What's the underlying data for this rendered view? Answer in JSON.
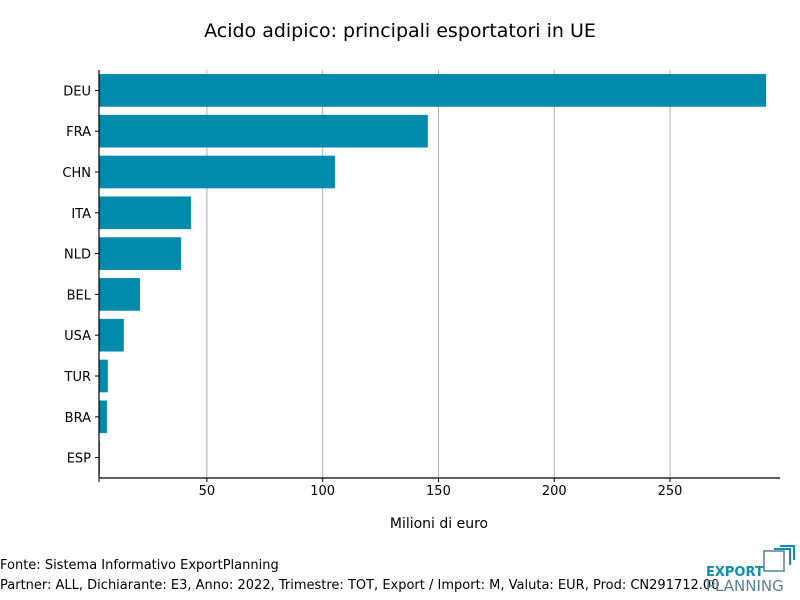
{
  "chart_data": {
    "type": "bar",
    "orientation": "horizontal",
    "title": "Acido adipico: principali esportatori in UE",
    "xlabel": "Milioni di euro",
    "ylabel": "",
    "categories": [
      "DEU",
      "FRA",
      "CHN",
      "ITA",
      "NLD",
      "BEL",
      "USA",
      "TUR",
      "BRA",
      "ESP"
    ],
    "values": [
      291.5,
      145.4,
      105.3,
      43.1,
      38.8,
      21.1,
      14.1,
      7.2,
      6.8,
      3.8
    ],
    "xticks": [
      50,
      100,
      150,
      200,
      250
    ],
    "xlim": [
      3.4,
      297.5
    ],
    "grid": "vertical",
    "bar_color": "#008aab",
    "grid_color": "#b0b0b0"
  },
  "footer": {
    "source": "Fonte: Sistema Informativo ExportPlanning",
    "details": "Partner: ALL, Dichiarante: E3, Anno: 2022, Trimestre: TOT, Export / Import: M, Valuta: EUR, Prod: CN291712.00"
  },
  "logo": {
    "line1": "EXPORT",
    "line2": "PLANNING",
    "color1": "#0a8fb0",
    "color2": "#5b7f95"
  }
}
